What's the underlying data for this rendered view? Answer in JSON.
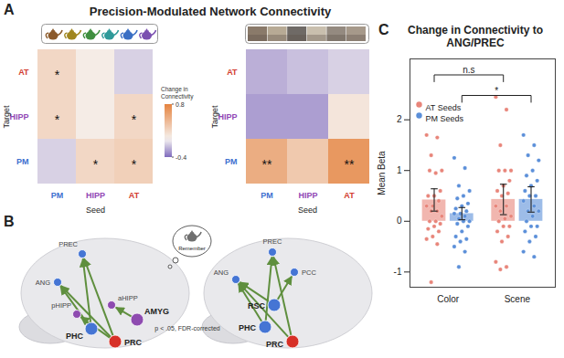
{
  "panel_labels": [
    "A",
    "B",
    "C"
  ],
  "title": "Precision-Modulated Network Connectivity",
  "colorbar": {
    "title": "Change in Connectivity",
    "range": [
      -0.4,
      0.8
    ],
    "ticks": [
      -0.4,
      0.8
    ]
  },
  "chart_data": [
    {
      "type": "heatmap",
      "x_label": "Seed",
      "y_label": "Target",
      "x": [
        "PM",
        "HIPP",
        "AT"
      ],
      "y": [
        "AT",
        "HIPP",
        "PM"
      ],
      "values": [
        [
          0.2,
          0.05,
          -0.1
        ],
        [
          0.2,
          0.05,
          0.2
        ],
        [
          -0.1,
          0.2,
          0.25
        ]
      ],
      "annotations": [
        [
          "*",
          null,
          null
        ],
        [
          "*",
          null,
          "*"
        ],
        [
          null,
          "*",
          "*"
        ]
      ]
    },
    {
      "type": "heatmap",
      "x_label": "Seed",
      "y_label": "Target",
      "x": [
        "PM",
        "HIPP",
        "AT"
      ],
      "y": [
        "AT",
        "HIPP",
        "PM"
      ],
      "values": [
        [
          -0.2,
          -0.15,
          -0.1
        ],
        [
          -0.25,
          -0.25,
          0.1
        ],
        [
          0.5,
          0.3,
          0.65
        ]
      ],
      "annotations": [
        [
          null,
          null,
          null
        ],
        [
          null,
          null,
          null
        ],
        [
          "**",
          null,
          "**"
        ]
      ]
    },
    {
      "type": "bar",
      "title": "Change in Connectivity to ANG/PREC",
      "y_label": "Mean Beta",
      "categories": [
        "Color",
        "Scene"
      ],
      "ylim": [
        -1.3,
        3.2
      ],
      "yticks": [
        -1,
        0,
        1,
        2
      ],
      "legend": "top-left",
      "series": [
        {
          "name": "AT Seeds",
          "color": "#e8857a",
          "values": [
            0.42,
            0.43
          ],
          "errors": [
            0.22,
            0.3
          ],
          "points": [
            [
              1.7,
              1.65,
              1.3,
              1.0,
              0.95,
              1.0,
              0.6,
              0.5,
              0.5,
              0.4,
              0.3,
              0.3,
              0.2,
              0.2,
              0.1,
              0.0,
              0.0,
              -0.05,
              -0.1,
              -0.15,
              -0.2,
              -0.3,
              -0.35,
              -0.45,
              -1.2
            ],
            [
              2.45,
              2.2,
              1.5,
              1.0,
              1.0,
              1.0,
              0.8,
              0.7,
              0.6,
              0.55,
              0.5,
              0.3,
              0.3,
              0.2,
              0.1,
              0.05,
              0.0,
              -0.1,
              -0.1,
              -0.2,
              -0.3,
              -0.4,
              -0.8,
              -0.9,
              -0.95
            ]
          ]
        },
        {
          "name": "PM Seeds",
          "color": "#5b8fd9",
          "values": [
            0.15,
            0.43
          ],
          "errors": [
            0.12,
            0.25
          ],
          "points": [
            [
              1.25,
              1.05,
              0.7,
              0.6,
              0.5,
              0.45,
              0.35,
              0.3,
              0.25,
              0.2,
              0.15,
              0.15,
              0.1,
              0.05,
              0.0,
              0.0,
              -0.05,
              -0.1,
              -0.2,
              -0.3,
              -0.35,
              -0.4,
              -0.5,
              -0.6,
              -0.9
            ],
            [
              1.7,
              1.5,
              1.3,
              1.2,
              1.0,
              0.9,
              0.8,
              0.7,
              0.6,
              0.5,
              0.5,
              0.4,
              0.3,
              0.2,
              0.2,
              0.1,
              0.0,
              -0.1,
              -0.1,
              -0.2,
              -0.3,
              -0.4,
              -0.6,
              -0.7
            ]
          ]
        }
      ],
      "comparisons": [
        {
          "series": "AT Seeds",
          "categories": [
            "Color",
            "Scene"
          ],
          "label": "n.s"
        },
        {
          "series": "PM Seeds",
          "categories": [
            "Color",
            "Scene"
          ],
          "label": "*"
        }
      ]
    }
  ],
  "diagram": {
    "cue": "Remember",
    "note": "p < .05, FDR-corrected",
    "brains": [
      {
        "nodes": [
          {
            "label": "PREC",
            "color": "#4575d4",
            "highlighted": false
          },
          {
            "label": "ANG",
            "color": "#4575d4",
            "highlighted": false
          },
          {
            "label": "aHIPP",
            "color": "#8e4bb0",
            "highlighted": false
          },
          {
            "label": "pHIPP",
            "color": "#8e4bb0",
            "highlighted": false
          },
          {
            "label": "PHC",
            "color": "#4575d4",
            "highlighted": true
          },
          {
            "label": "AMYG",
            "color": "#8e4bb0",
            "highlighted": true
          },
          {
            "label": "PRC",
            "color": "#d73027",
            "highlighted": true
          }
        ],
        "edges": [
          [
            "PRC",
            "ANG"
          ],
          [
            "PRC",
            "PREC"
          ],
          [
            "PHC",
            "ANG"
          ],
          [
            "PHC",
            "PREC"
          ],
          [
            "AMYG",
            "aHIPP"
          ],
          [
            "PRC",
            "pHIPP"
          ]
        ]
      },
      {
        "nodes": [
          {
            "label": "PREC",
            "color": "#4575d4",
            "highlighted": false
          },
          {
            "label": "PCC",
            "color": "#4575d4",
            "highlighted": false
          },
          {
            "label": "ANG",
            "color": "#4575d4",
            "highlighted": false
          },
          {
            "label": "RSC",
            "color": "#4575d4",
            "highlighted": true
          },
          {
            "label": "PHC",
            "color": "#4575d4",
            "highlighted": true
          },
          {
            "label": "PRC",
            "color": "#d73027",
            "highlighted": true
          }
        ],
        "edges": [
          [
            "PRC",
            "ANG"
          ],
          [
            "PRC",
            "PREC"
          ],
          [
            "PHC",
            "ANG"
          ],
          [
            "PHC",
            "PREC"
          ],
          [
            "RSC",
            "PCC"
          ],
          [
            "RSC",
            "ANG"
          ]
        ]
      }
    ]
  }
}
